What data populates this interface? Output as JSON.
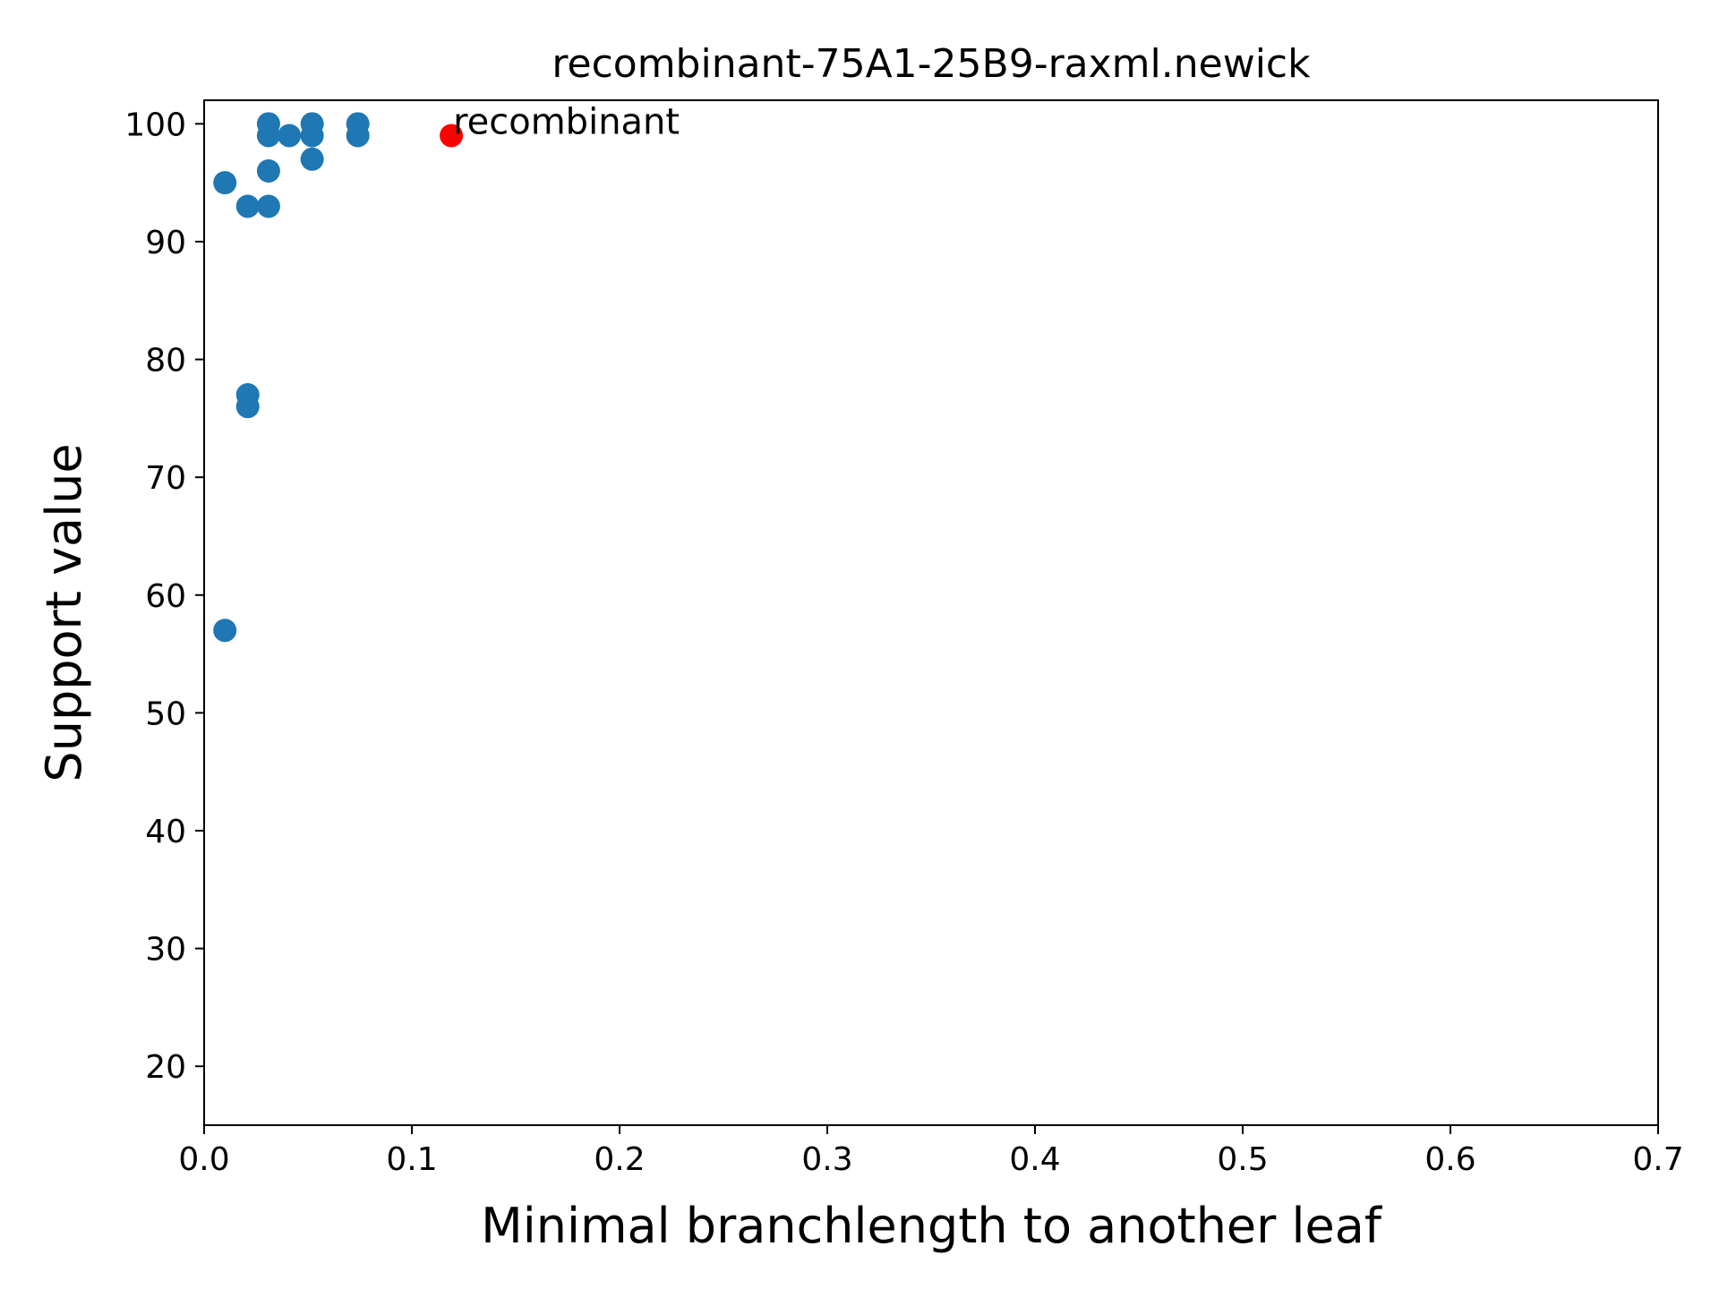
{
  "chart_data": {
    "type": "scatter",
    "title": "recombinant-75A1-25B9-raxml.newick",
    "xlabel": "Minimal branchlength to another leaf",
    "ylabel": "Support value",
    "xlim": [
      0.0,
      0.7
    ],
    "ylim": [
      15,
      102
    ],
    "xticks": [
      0.0,
      0.1,
      0.2,
      0.3,
      0.4,
      0.5,
      0.6,
      0.7
    ],
    "xtick_labels": [
      "0.0",
      "0.1",
      "0.2",
      "0.3",
      "0.4",
      "0.5",
      "0.6",
      "0.7"
    ],
    "yticks": [
      20,
      30,
      40,
      50,
      60,
      70,
      80,
      90,
      100
    ],
    "ytick_labels": [
      "20",
      "30",
      "40",
      "50",
      "60",
      "70",
      "80",
      "90",
      "100"
    ],
    "grid": false,
    "series": [
      {
        "color": "#1f77b4",
        "points": [
          {
            "x": 0.01,
            "y": 95
          },
          {
            "x": 0.01,
            "y": 57
          },
          {
            "x": 0.021,
            "y": 93
          },
          {
            "x": 0.021,
            "y": 77
          },
          {
            "x": 0.021,
            "y": 76
          },
          {
            "x": 0.031,
            "y": 100
          },
          {
            "x": 0.031,
            "y": 99
          },
          {
            "x": 0.031,
            "y": 96
          },
          {
            "x": 0.031,
            "y": 93
          },
          {
            "x": 0.041,
            "y": 99
          },
          {
            "x": 0.052,
            "y": 100
          },
          {
            "x": 0.052,
            "y": 99
          },
          {
            "x": 0.052,
            "y": 97
          },
          {
            "x": 0.074,
            "y": 100
          },
          {
            "x": 0.074,
            "y": 99
          }
        ]
      },
      {
        "color": "#ff0000",
        "points": [
          {
            "x": 0.119,
            "y": 99
          }
        ]
      }
    ],
    "annotations": [
      {
        "text": "recombinant",
        "x": 0.119,
        "y": 99
      }
    ]
  }
}
